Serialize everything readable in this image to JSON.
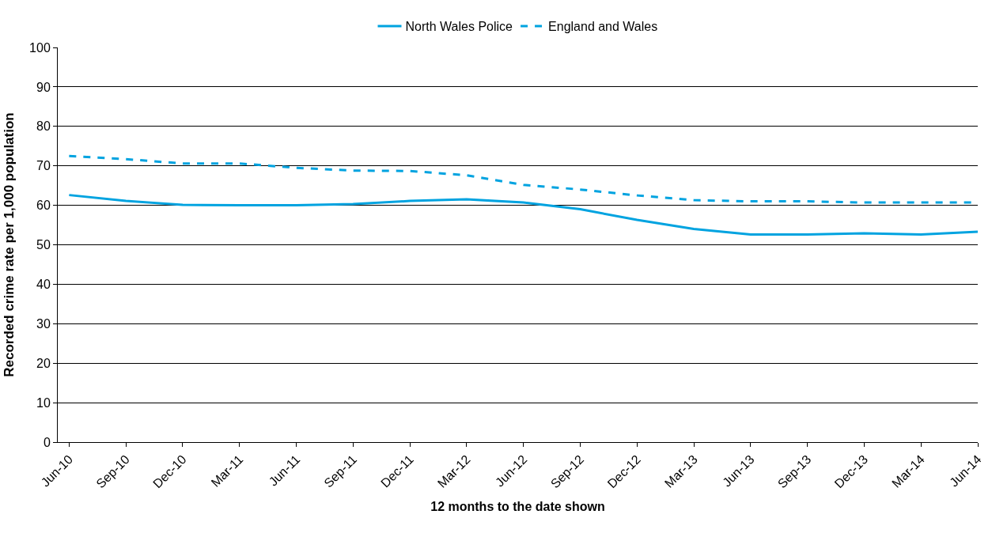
{
  "chart_data": {
    "type": "line",
    "xlabel": "12 months to the date shown",
    "ylabel": "Recorded crime rate per 1,000 population",
    "categories": [
      "Jun-10",
      "Sep-10",
      "Dec-10",
      "Mar-11",
      "Jun-11",
      "Sep-11",
      "Dec-11",
      "Mar-12",
      "Jun-12",
      "Sep-12",
      "Dec-12",
      "Mar-13",
      "Jun-13",
      "Sep-13",
      "Dec-13",
      "Mar-14",
      "Jun-14"
    ],
    "series": [
      {
        "name": "North Wales Police",
        "color": "#00a3e0",
        "line_style": "solid",
        "values": [
          62.6,
          61.1,
          60.1,
          60.0,
          60.0,
          60.3,
          61.1,
          61.5,
          60.7,
          59.0,
          56.3,
          54.0,
          52.6,
          52.6,
          52.9,
          52.6,
          53.3
        ]
      },
      {
        "name": "England and Wales",
        "color": "#00a3e0",
        "line_style": "dashed",
        "values": [
          72.5,
          71.7,
          70.6,
          70.6,
          69.5,
          68.8,
          68.7,
          67.6,
          65.2,
          64.0,
          62.5,
          61.3,
          61.0,
          61.0,
          60.7,
          60.7,
          60.7
        ]
      }
    ],
    "ylim": [
      0,
      100
    ],
    "yticks": [
      0,
      10,
      20,
      30,
      40,
      50,
      60,
      70,
      80,
      90,
      100
    ],
    "grid": "y",
    "legend": "top",
    "marker": "none"
  }
}
